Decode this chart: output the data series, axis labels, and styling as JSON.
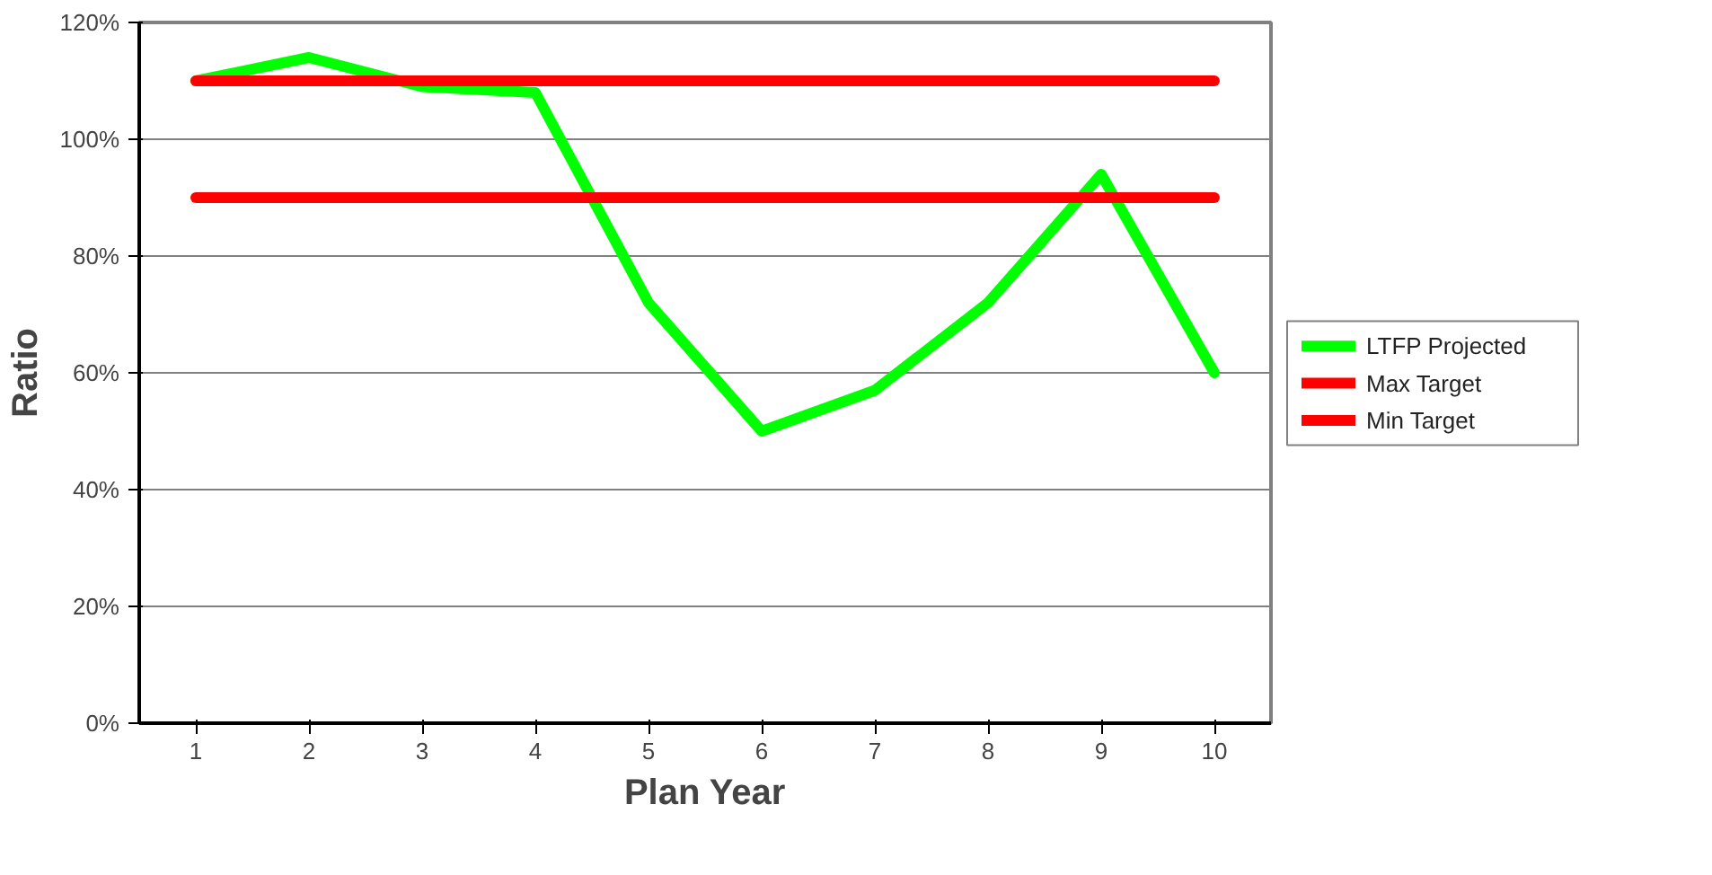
{
  "chart_data": {
    "type": "line",
    "xlabel": "Plan Year",
    "ylabel": "Ratio",
    "categories": [
      "1",
      "2",
      "3",
      "4",
      "5",
      "6",
      "7",
      "8",
      "9",
      "10"
    ],
    "series": [
      {
        "name": "LTFP Projected",
        "color": "#00ff00",
        "values": [
          110,
          114,
          109,
          108,
          72,
          50,
          57,
          72,
          94,
          60
        ]
      },
      {
        "name": "Max Target",
        "color": "#ff0000",
        "values": [
          110,
          110,
          110,
          110,
          110,
          110,
          110,
          110,
          110,
          110
        ]
      },
      {
        "name": "Min Target",
        "color": "#ff0000",
        "values": [
          90,
          90,
          90,
          90,
          90,
          90,
          90,
          90,
          90,
          90
        ]
      }
    ],
    "ylim": [
      0,
      120
    ],
    "yticks": [
      {
        "value": 0,
        "label": "0%"
      },
      {
        "value": 20,
        "label": "20%"
      },
      {
        "value": 40,
        "label": "40%"
      },
      {
        "value": 60,
        "label": "60%"
      },
      {
        "value": 80,
        "label": "80%"
      },
      {
        "value": 100,
        "label": "100%"
      },
      {
        "value": 120,
        "label": "120%"
      }
    ],
    "grid": "y",
    "legend": "right",
    "marker": "none",
    "line_style": "solid"
  }
}
